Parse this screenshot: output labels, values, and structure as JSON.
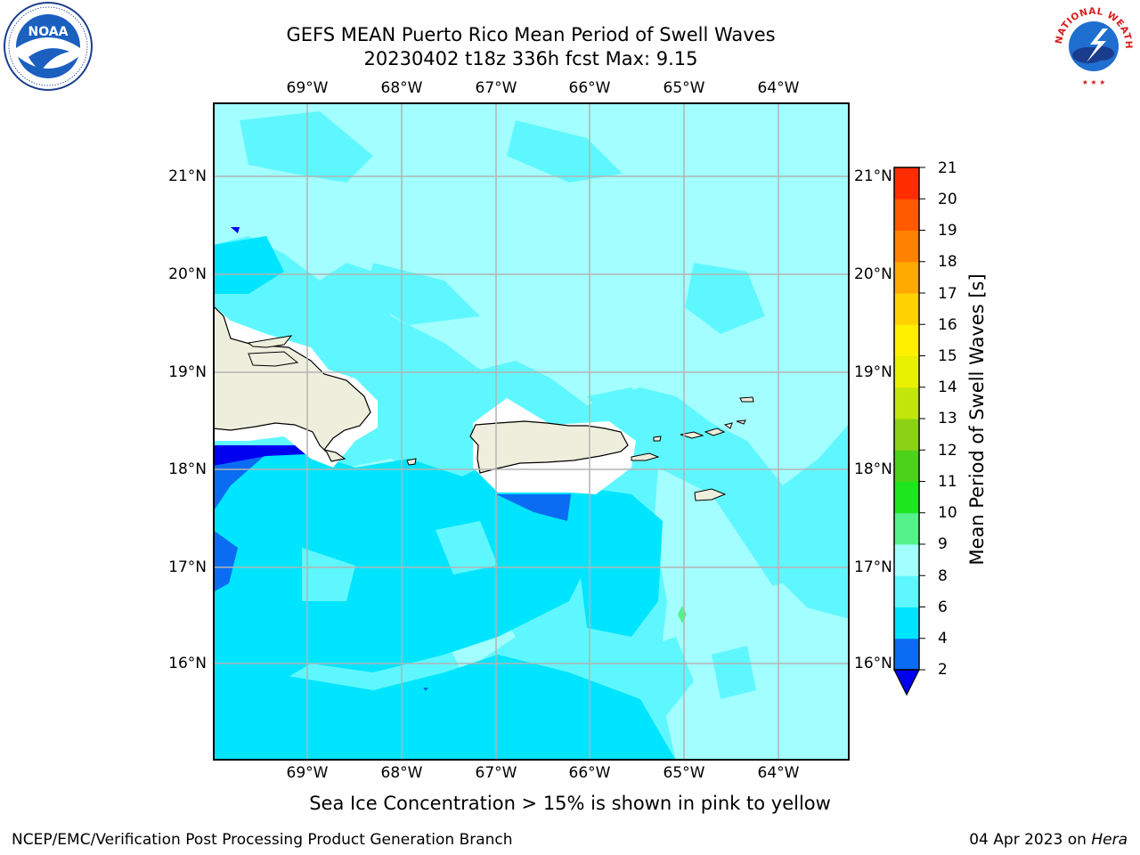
{
  "title_line1": "GEFS MEAN Puerto Rico Mean Period of Swell Waves",
  "title_line2": "20230402 t18z 336h fcst   Max: 9.15",
  "lon_labels": [
    "69°W",
    "68°W",
    "67°W",
    "66°W",
    "65°W",
    "64°W"
  ],
  "lat_labels": [
    "21°N",
    "20°N",
    "19°N",
    "18°N",
    "17°N",
    "16°N"
  ],
  "colorbar": {
    "label": "Mean Period of Swell Waves [s]",
    "ticks": [
      "2",
      "4",
      "6",
      "8",
      "9",
      "10",
      "11",
      "12",
      "13",
      "14",
      "15",
      "16",
      "17",
      "18",
      "19",
      "20",
      "21"
    ],
    "colors": [
      "#0a6cf2",
      "#00e5ff",
      "#5ff7ff",
      "#a3ffff",
      "#55f28a",
      "#1ee61e",
      "#4cd21a",
      "#8cd214",
      "#c3e60a",
      "#e6f000",
      "#fff000",
      "#ffd200",
      "#ffaa00",
      "#ff8200",
      "#ff5a00",
      "#ff2d00",
      "#ff0000"
    ],
    "extend_color": "#0000f0"
  },
  "note": "Sea Ice Concentration > 15% is shown in pink to yellow",
  "footer_left": "NCEP/EMC/Verification Post Processing Product Generation Branch",
  "footer_date": "04 Apr 2023 on ",
  "footer_host": "Hera",
  "logos": [
    "noaa-logo",
    "national-weather-service-logo"
  ],
  "noaa_text": "NOAA",
  "nws_text": "NATIONAL WEATHER SERVICE"
}
